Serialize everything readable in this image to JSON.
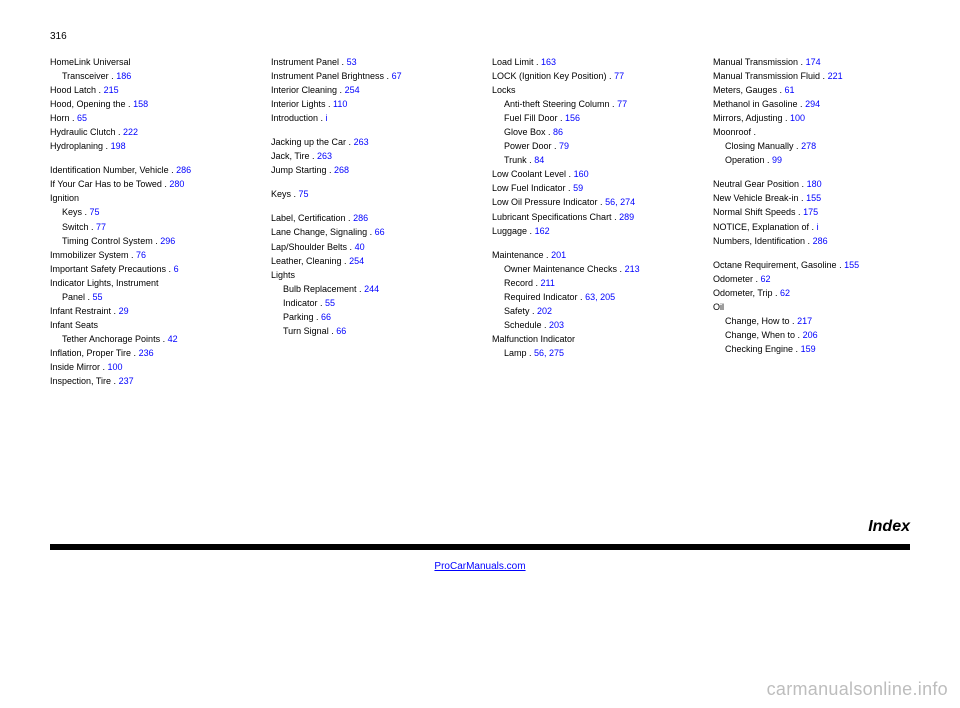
{
  "page_number": "316",
  "columns": [
    [
      {
        "t": "main",
        "text": "HomeLink Universal"
      },
      {
        "t": "sub",
        "label": "Transceiver .",
        "page": "186"
      },
      {
        "t": "main",
        "text": "Hood Latch .",
        "page": "215"
      },
      {
        "t": "main",
        "text": "Hood, Opening the .",
        "page": "158"
      },
      {
        "t": "main",
        "text": "Horn .",
        "page": "65"
      },
      {
        "t": "main",
        "text": "Hydraulic Clutch .",
        "page": "222"
      },
      {
        "t": "main",
        "text": "Hydroplaning .",
        "page": "198"
      },
      {
        "t": "gap"
      },
      {
        "t": "main",
        "text": "Identification Number, Vehicle . ",
        "page": "286"
      },
      {
        "t": "main",
        "text": "If Your Car Has to be Towed . ",
        "page": "280"
      },
      {
        "t": "main",
        "text": "Ignition"
      },
      {
        "t": "sub",
        "label": "Keys .",
        "page": "75"
      },
      {
        "t": "sub",
        "label": "Switch .",
        "page": "77"
      },
      {
        "t": "sub",
        "label": "Timing Control System .",
        "page": "296"
      },
      {
        "t": "main",
        "text": "Immobilizer System .",
        "page": "76"
      },
      {
        "t": "main",
        "text": "Important Safety Precautions .",
        "page": "6"
      },
      {
        "t": "main",
        "text": "Indicator Lights, Instrument"
      },
      {
        "t": "sub",
        "label": "Panel .",
        "page": "55"
      },
      {
        "t": "main",
        "text": "Infant Restraint .",
        "page": "29"
      },
      {
        "t": "main",
        "text": "Infant Seats"
      },
      {
        "t": "sub",
        "label": "Tether Anchorage Points .",
        "page": "42"
      },
      {
        "t": "main",
        "text": "Inflation, Proper Tire .",
        "page": "236"
      },
      {
        "t": "main",
        "text": "Inside Mirror .",
        "page": "100"
      },
      {
        "t": "main",
        "text": "Inspection, Tire .",
        "page": "237"
      }
    ],
    [
      {
        "t": "main",
        "text": "Instrument Panel .",
        "page": "53"
      },
      {
        "t": "main",
        "text": "Instrument Panel Brightness .",
        "page": "67"
      },
      {
        "t": "main",
        "text": "Interior Cleaning .",
        "page": "254"
      },
      {
        "t": "main",
        "text": "Interior Lights .",
        "page": "110"
      },
      {
        "t": "main",
        "text": "Introduction .",
        "page": "i"
      },
      {
        "t": "gap"
      },
      {
        "t": "main",
        "text": "Jacking up the Car .",
        "page": "263"
      },
      {
        "t": "main",
        "text": "Jack, Tire .",
        "page": "263"
      },
      {
        "t": "main",
        "text": "Jump Starting .",
        "page": "268"
      },
      {
        "t": "gap"
      },
      {
        "t": "main",
        "text": "Keys .",
        "page": "75"
      },
      {
        "t": "gap"
      },
      {
        "t": "main",
        "text": "Label, Certification .",
        "page": "286"
      },
      {
        "t": "main",
        "text": "Lane Change, Signaling .",
        "page": "66"
      },
      {
        "t": "main",
        "text": "Lap/Shoulder Belts .",
        "page": "40"
      },
      {
        "t": "main",
        "text": "Leather, Cleaning .",
        "page": "254"
      },
      {
        "t": "main",
        "text": "Lights"
      },
      {
        "t": "sub",
        "label": "Bulb Replacement .",
        "page": "244"
      },
      {
        "t": "sub",
        "label": "Indicator .",
        "page": "55"
      },
      {
        "t": "sub",
        "label": "Parking .",
        "page": "66"
      },
      {
        "t": "sub",
        "label": "Turn Signal .",
        "page": "66"
      }
    ],
    [
      {
        "t": "main",
        "text": "Load Limit .",
        "page": "163"
      },
      {
        "t": "main",
        "text": "LOCK (Ignition Key Position) .",
        "page": "77"
      },
      {
        "t": "main",
        "text": "Locks"
      },
      {
        "t": "sub",
        "label": "Anti-theft Steering Column .",
        "page": "77"
      },
      {
        "t": "sub",
        "label": "Fuel Fill Door .",
        "page": "156"
      },
      {
        "t": "sub",
        "label": "Glove Box .",
        "page": "86"
      },
      {
        "t": "sub",
        "label": "Power Door .",
        "page": "79"
      },
      {
        "t": "sub",
        "label": "Trunk .",
        "page": "84"
      },
      {
        "t": "main",
        "text": "Low Coolant Level .",
        "page": "160"
      },
      {
        "t": "main",
        "text": "Low Fuel Indicator .",
        "page": "59"
      },
      {
        "t": "main",
        "text": "Low Oil Pressure Indicator .",
        "page": "56, 274"
      },
      {
        "t": "main",
        "text": "Lubricant Specifications Chart . ",
        "page": "289"
      },
      {
        "t": "main",
        "text": "Luggage .",
        "page": "162"
      },
      {
        "t": "gap"
      },
      {
        "t": "main",
        "text": "Maintenance .",
        "page": "201"
      },
      {
        "t": "sub",
        "label": "Owner Maintenance Checks .",
        "page": "213"
      },
      {
        "t": "sub",
        "label": "Record .",
        "page": "211"
      },
      {
        "t": "sub",
        "label": "Required Indicator .",
        "page": "63, 205"
      },
      {
        "t": "sub",
        "label": "Safety .",
        "page": "202"
      },
      {
        "t": "sub",
        "label": "Schedule .",
        "page": "203"
      },
      {
        "t": "main",
        "text": "Malfunction Indicator"
      },
      {
        "t": "sub",
        "label": "Lamp .",
        "page": "56, 275"
      }
    ],
    [
      {
        "t": "main",
        "text": "Manual Transmission .",
        "page": "174"
      },
      {
        "t": "main",
        "text": "Manual Transmission Fluid .",
        "page": "221"
      },
      {
        "t": "main",
        "text": "Meters, Gauges .",
        "page": "61"
      },
      {
        "t": "main",
        "text": "Methanol in Gasoline .",
        "page": "294"
      },
      {
        "t": "main",
        "text": "Mirrors, Adjusting .",
        "page": "100"
      },
      {
        "t": "main",
        "text": "Moonroof ."
      },
      {
        "t": "sub",
        "label": "Closing Manually .",
        "page": "278"
      },
      {
        "t": "sub",
        "label": "Operation .",
        "page": "99"
      },
      {
        "t": "gap"
      },
      {
        "t": "main",
        "text": "Neutral Gear Position .",
        "page": "180"
      },
      {
        "t": "main",
        "text": "New Vehicle Break-in .",
        "page": "155"
      },
      {
        "t": "main",
        "text": "Normal Shift Speeds .",
        "page": "175"
      },
      {
        "t": "main",
        "text": "NOTICE, Explanation of .",
        "page": "i"
      },
      {
        "t": "main",
        "text": "Numbers, Identification .",
        "page": "286"
      },
      {
        "t": "gap"
      },
      {
        "t": "main",
        "text": "Octane Requirement, Gasoline . ",
        "page": "155"
      },
      {
        "t": "main",
        "text": "Odometer .",
        "page": "62"
      },
      {
        "t": "main",
        "text": "Odometer, Trip .",
        "page": "62"
      },
      {
        "t": "main",
        "text": "Oil"
      },
      {
        "t": "sub",
        "label": "Change, How to .",
        "page": "217"
      },
      {
        "t": "sub",
        "label": "Change, When to .",
        "page": "206"
      },
      {
        "t": "sub",
        "label": "Checking Engine .",
        "page": "159"
      }
    ]
  ],
  "section_title": "Index",
  "footer_url": "ProCarManuals.com",
  "watermark": "carmanualsonline.info",
  "colors": {
    "link": "#0000ff",
    "text": "#000000",
    "watermark": "#bdbdbd"
  }
}
